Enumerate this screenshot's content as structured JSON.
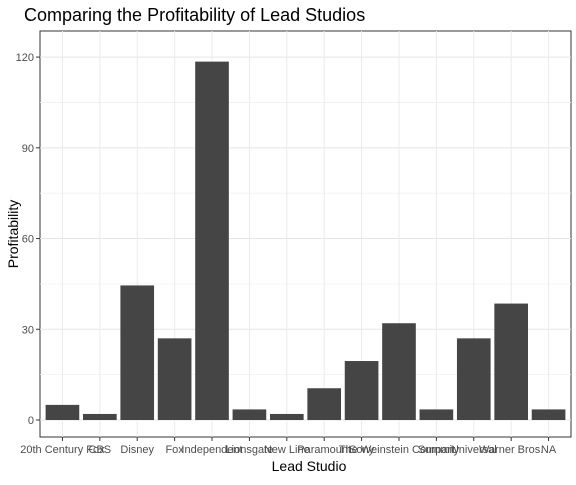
{
  "chart_data": {
    "type": "bar",
    "title": "Comparing the Profitability of Lead Studios",
    "xlabel": "Lead Studio",
    "ylabel": "Profitability",
    "categories": [
      "20th Century Fox",
      "CBS",
      "Disney",
      "Fox",
      "Independent",
      "Lionsgate",
      "New Line",
      "Paramount",
      "Sony",
      "The Weinstein Company",
      "Summit",
      "Universal",
      "Warner Bros.",
      "NA"
    ],
    "values": [
      5,
      2,
      44.5,
      27,
      118.5,
      3.5,
      2,
      10.5,
      19.5,
      32,
      3.5,
      27,
      38.5,
      3.5
    ],
    "ylim": [
      0,
      124
    ],
    "yticks": [
      0,
      30,
      60,
      90,
      120
    ],
    "grid": true,
    "bar_color": "#454545",
    "theme": "black-white"
  }
}
